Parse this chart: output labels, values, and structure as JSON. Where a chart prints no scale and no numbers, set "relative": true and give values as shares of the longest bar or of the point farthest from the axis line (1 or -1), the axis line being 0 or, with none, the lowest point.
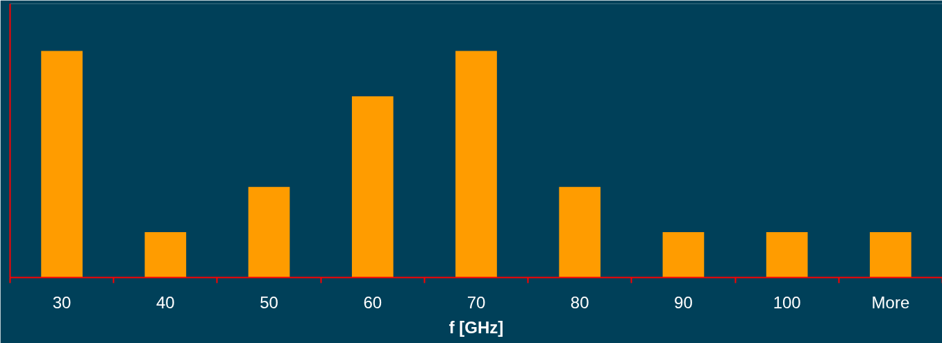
{
  "chart_data": {
    "type": "bar",
    "xlabel": "f [GHz]",
    "categories": [
      "30",
      "40",
      "50",
      "60",
      "70",
      "80",
      "90",
      "100",
      "More"
    ],
    "values": [
      1,
      0.2,
      0.4,
      0.8,
      1,
      0.4,
      0.2,
      0.2,
      0.2
    ],
    "color": "#ff9c00",
    "relative": true
  }
}
